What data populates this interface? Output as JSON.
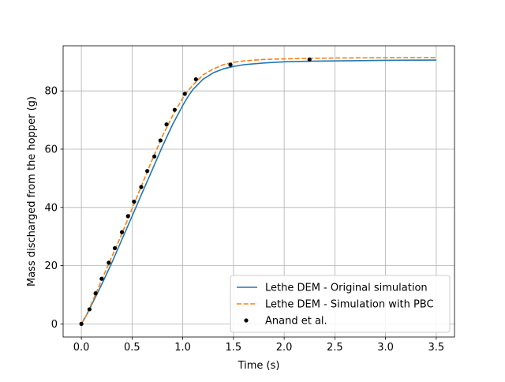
{
  "chart_data": {
    "type": "line",
    "title": "",
    "xlabel": "Time (s)",
    "ylabel": "Mass discharged from the hopper (g)",
    "xlim": [
      -0.18,
      3.68
    ],
    "ylim": [
      -4.5,
      95.5
    ],
    "grid": true,
    "legend_position": "lower right",
    "x_ticks": [
      0.0,
      0.5,
      1.0,
      1.5,
      2.0,
      2.5,
      3.0,
      3.5
    ],
    "x_tick_labels": [
      "0.0",
      "0.5",
      "1.0",
      "1.5",
      "2.0",
      "2.5",
      "3.0",
      "3.5"
    ],
    "y_ticks": [
      0,
      20,
      40,
      60,
      80
    ],
    "y_tick_labels": [
      "0",
      "20",
      "40",
      "60",
      "80"
    ],
    "series": [
      {
        "name": "Lethe DEM - Original simulation",
        "color": "#1f77b4",
        "style": "solid",
        "x": [
          0.0,
          0.05,
          0.1,
          0.15,
          0.2,
          0.3,
          0.4,
          0.5,
          0.6,
          0.7,
          0.8,
          0.9,
          1.0,
          1.05,
          1.1,
          1.2,
          1.3,
          1.4,
          1.5,
          1.6,
          1.8,
          2.0,
          2.25,
          2.5,
          3.0,
          3.5
        ],
        "y": [
          0,
          3,
          6.5,
          10,
          13.5,
          21,
          29,
          37,
          45,
          53,
          61,
          68.5,
          75,
          78,
          80.5,
          84,
          86.2,
          87.6,
          88.4,
          89,
          89.6,
          90,
          90.2,
          90.3,
          90.5,
          90.6
        ]
      },
      {
        "name": "Lethe DEM - Simulation with PBC",
        "color": "#ff7f0e",
        "style": "dashed",
        "x": [
          0.0,
          0.05,
          0.1,
          0.15,
          0.2,
          0.3,
          0.4,
          0.5,
          0.6,
          0.7,
          0.8,
          0.9,
          1.0,
          1.05,
          1.1,
          1.2,
          1.3,
          1.4,
          1.5,
          1.6,
          1.8,
          2.0,
          2.25,
          2.5,
          3.0,
          3.5
        ],
        "y": [
          0,
          3,
          7,
          11,
          15,
          23,
          31,
          39.5,
          48,
          56.5,
          64.5,
          71.5,
          77.5,
          80,
          82,
          85.5,
          87.5,
          89,
          89.8,
          90.3,
          90.8,
          91,
          91.2,
          91.3,
          91.4,
          91.5
        ]
      },
      {
        "name": "Anand et al.",
        "color": "#000000",
        "style": "markers",
        "x": [
          0.0,
          0.08,
          0.14,
          0.2,
          0.27,
          0.33,
          0.4,
          0.46,
          0.52,
          0.59,
          0.65,
          0.72,
          0.78,
          0.84,
          0.92,
          1.02,
          1.13,
          1.47,
          2.25
        ],
        "y": [
          0,
          5,
          10.5,
          15.5,
          21,
          26,
          31.5,
          37,
          42,
          47,
          52.5,
          57.5,
          63,
          68.5,
          73.5,
          79,
          84,
          89,
          90.8
        ]
      }
    ]
  }
}
